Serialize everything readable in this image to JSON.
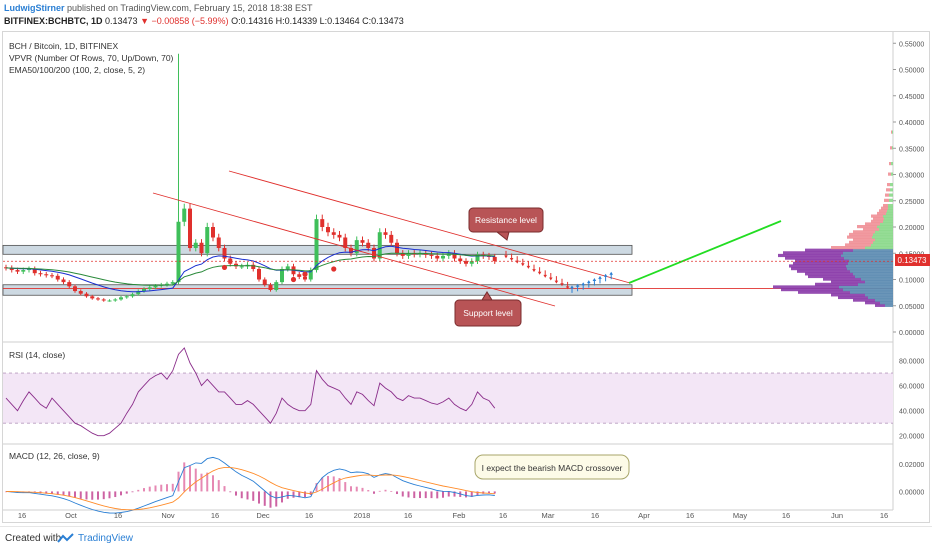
{
  "header": {
    "author": "LudwigStirner",
    "published": "published on TradingView.com, February 15, 2018 18:38 EST",
    "symbol": "BITFINEX:BCHBTC, 1D",
    "last": "0.13473",
    "change": "▼ −0.00858 (−5.99%)",
    "ohlc": "O:0.14316 H:0.14339 L:0.13464 C:0.13473"
  },
  "legend": {
    "line1": "BCH / Bitcoin, 1D, BITFINEX",
    "line2": "VPVR (Number Of Rows, 70, Up/Down, 70)",
    "line3": "EMA50/100/200 (100, 2, close, 5, 2)"
  },
  "annotations": {
    "resistance": "Resistance level",
    "support": "Support level",
    "macd_note": "I expect the bearish MACD crossover"
  },
  "panes": {
    "rsi_title": "RSI (14, close)",
    "macd_title": "MACD (12, 26, close, 9)"
  },
  "price_badge": "0.13473",
  "footer": {
    "created": "Created with",
    "brand": "TradingView"
  },
  "colors": {
    "up": "#3fbf5a",
    "down": "#e0302d",
    "ema": "#1a2fd0",
    "rsi": "#8a2d8a",
    "macd": "#2a7fd4",
    "signal": "#ff8c2a",
    "resistance_line": "#e0302d",
    "projection": "#22dd22"
  },
  "chart_data": [
    {
      "type": "line",
      "title": "BCH / Bitcoin, 1D, BITFINEX",
      "y_ticks": [
        "0.55000",
        "0.50000",
        "0.45000",
        "0.40000",
        "0.35000",
        "0.30000",
        "0.25000",
        "0.20000",
        "0.15000",
        "0.10000",
        "0.05000",
        "0.00000"
      ],
      "x_ticks": [
        "16",
        "Oct",
        "16",
        "Nov",
        "16",
        "Dec",
        "16",
        "2018",
        "16",
        "Feb",
        "16",
        "Mar",
        "16",
        "Apr",
        "16",
        "May",
        "16",
        "Jun",
        "16"
      ],
      "ylim": [
        0,
        0.56
      ],
      "close_series": [
        0.122,
        0.118,
        0.115,
        0.118,
        0.12,
        0.112,
        0.11,
        0.108,
        0.107,
        0.1,
        0.095,
        0.087,
        0.078,
        0.073,
        0.068,
        0.064,
        0.062,
        0.06,
        0.06,
        0.062,
        0.066,
        0.068,
        0.072,
        0.078,
        0.082,
        0.085,
        0.088,
        0.09,
        0.092,
        0.095,
        0.21,
        0.235,
        0.16,
        0.17,
        0.15,
        0.2,
        0.18,
        0.16,
        0.14,
        0.13,
        0.125,
        0.125,
        0.128,
        0.12,
        0.1,
        0.09,
        0.08,
        0.095,
        0.12,
        0.125,
        0.11,
        0.105,
        0.1,
        0.118,
        0.215,
        0.2,
        0.19,
        0.185,
        0.18,
        0.16,
        0.15,
        0.175,
        0.17,
        0.16,
        0.14,
        0.19,
        0.185,
        0.17,
        0.15,
        0.145,
        0.15,
        0.148,
        0.15,
        0.147,
        0.145,
        0.14,
        0.145,
        0.15,
        0.14,
        0.135,
        0.13,
        0.135,
        0.147,
        0.145,
        0.143,
        0.135
      ],
      "resistance_zone": [
        0.148,
        0.165
      ],
      "support_zone": [
        0.07,
        0.09
      ],
      "projection_down": [
        0.143,
        0.138,
        0.133,
        0.128,
        0.123,
        0.117,
        0.112,
        0.106,
        0.101,
        0.095,
        0.09,
        0.084
      ],
      "projection_up": [
        0.086,
        0.089,
        0.092,
        0.096,
        0.1,
        0.104,
        0.108,
        0.112
      ],
      "last_price": 0.13473
    },
    {
      "type": "line",
      "title": "RSI (14, close)",
      "y_ticks": [
        "80.0000",
        "60.0000",
        "40.0000",
        "20.0000"
      ],
      "ylim": [
        15,
        90
      ],
      "values": [
        50,
        45,
        40,
        48,
        55,
        50,
        45,
        42,
        50,
        45,
        40,
        35,
        30,
        28,
        25,
        22,
        20,
        20,
        22,
        26,
        30,
        38,
        45,
        55,
        60,
        65,
        68,
        70,
        65,
        72,
        85,
        90,
        78,
        70,
        60,
        65,
        60,
        55,
        55,
        50,
        45,
        45,
        48,
        45,
        40,
        35,
        30,
        38,
        50,
        45,
        42,
        40,
        40,
        45,
        72,
        65,
        60,
        58,
        56,
        50,
        45,
        55,
        53,
        48,
        44,
        62,
        58,
        55,
        50,
        48,
        52,
        50,
        50,
        48,
        46,
        45,
        47,
        50,
        45,
        42,
        40,
        45,
        55,
        50,
        48,
        42
      ]
    },
    {
      "type": "line",
      "title": "MACD (12, 26, close, 9)",
      "y_ticks": [
        "0.02000",
        "0.00000"
      ],
      "ylim": [
        -0.012,
        0.03
      ]
    }
  ]
}
